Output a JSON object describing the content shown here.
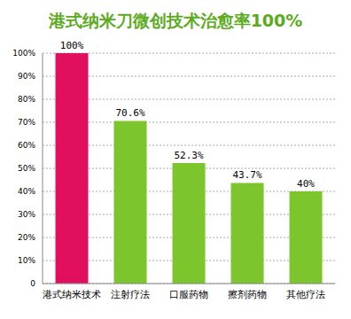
{
  "chart_data": {
    "type": "bar",
    "title": "港式纳米刀微创技术治愈率100%",
    "categories": [
      "港式纳米技术",
      "注射疗法",
      "口服药物",
      "擦剂药物",
      "其他疗法"
    ],
    "values": [
      100,
      70.6,
      52.3,
      43.7,
      40
    ],
    "value_labels": [
      "100%",
      "70.6%",
      "52.3%",
      "43.7%",
      "40%"
    ],
    "data_labels": true,
    "colors": [
      "#e0105e",
      "#7cc52c",
      "#7cc52c",
      "#7cc52c",
      "#7cc52c"
    ],
    "ylim": [
      0,
      100
    ],
    "yticks": [
      0,
      {
        "value": 10,
        "label": "10%"
      },
      {
        "value": 20,
        "label": "20%"
      },
      {
        "value": 30,
        "label": "30%"
      },
      {
        "value": 40,
        "label": "40%"
      },
      {
        "value": 50,
        "label": "50%"
      },
      {
        "value": 60,
        "label": "60%"
      },
      {
        "value": 70,
        "label": "70%"
      },
      {
        "value": 80,
        "label": "80%"
      },
      {
        "value": 90,
        "label": "90%"
      },
      {
        "value": 100,
        "label": "100%"
      }
    ],
    "grid": true
  }
}
